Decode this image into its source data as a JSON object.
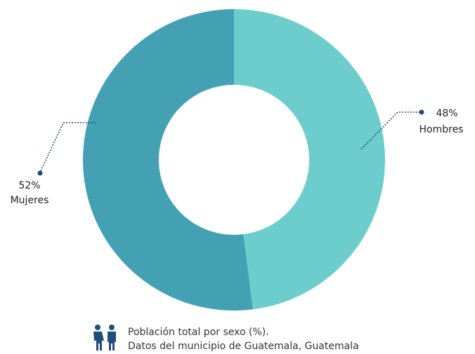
{
  "chart_data": {
    "type": "donut",
    "categories": [
      "Hombres",
      "Mujeres"
    ],
    "values": [
      48,
      52
    ],
    "value_labels": [
      "48%",
      "52%"
    ],
    "colors": [
      "#6dcdcc",
      "#44a1b4"
    ],
    "caption": [
      "Población total por sexo (%).",
      "Datos del municipio de Guatemala, Guatemala"
    ]
  }
}
